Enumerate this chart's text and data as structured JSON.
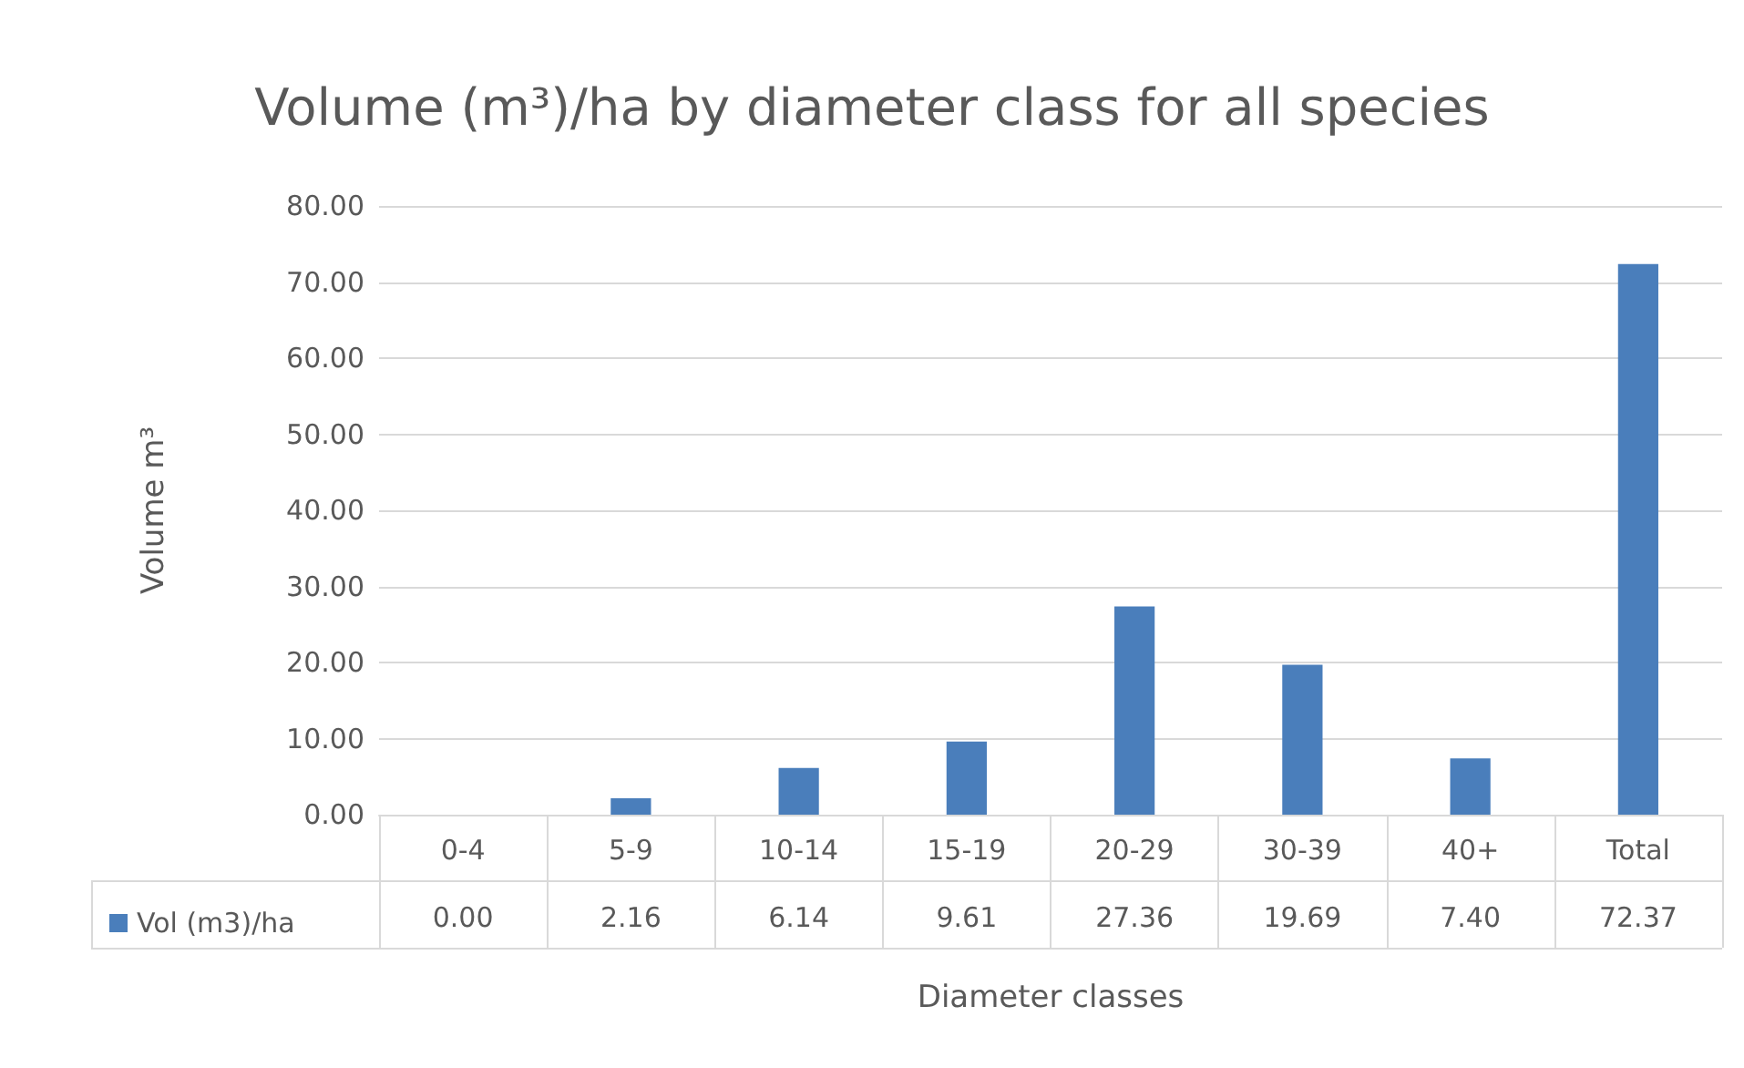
{
  "chart_data": {
    "type": "bar",
    "title": "Volume (m³)/ha by diameter class for all species",
    "xlabel": "Diameter classes",
    "ylabel": "Volume m³",
    "categories": [
      "0-4",
      "5-9",
      "10-14",
      "15-19",
      "20-29",
      "30-39",
      "40+",
      "Total"
    ],
    "series": [
      {
        "name": "Vol (m3)/ha",
        "color": "#4a7ebb",
        "values": [
          0.0,
          2.16,
          6.14,
          9.61,
          27.36,
          19.69,
          7.4,
          72.37
        ],
        "value_labels": [
          "0.00",
          "2.16",
          "6.14",
          "9.61",
          "27.36",
          "19.69",
          "7.40",
          "72.37"
        ]
      }
    ],
    "ylim": [
      0,
      80
    ],
    "yticks": [
      {
        "value": 0,
        "label": "0.00"
      },
      {
        "value": 10,
        "label": "10.00"
      },
      {
        "value": 20,
        "label": "20.00"
      },
      {
        "value": 30,
        "label": "30.00"
      },
      {
        "value": 40,
        "label": "40.00"
      },
      {
        "value": 50,
        "label": "50.00"
      },
      {
        "value": 60,
        "label": "60.00"
      },
      {
        "value": 70,
        "label": "70.00"
      },
      {
        "value": 80,
        "label": "80.00"
      }
    ],
    "grid": "y",
    "legend": "bottom left"
  }
}
